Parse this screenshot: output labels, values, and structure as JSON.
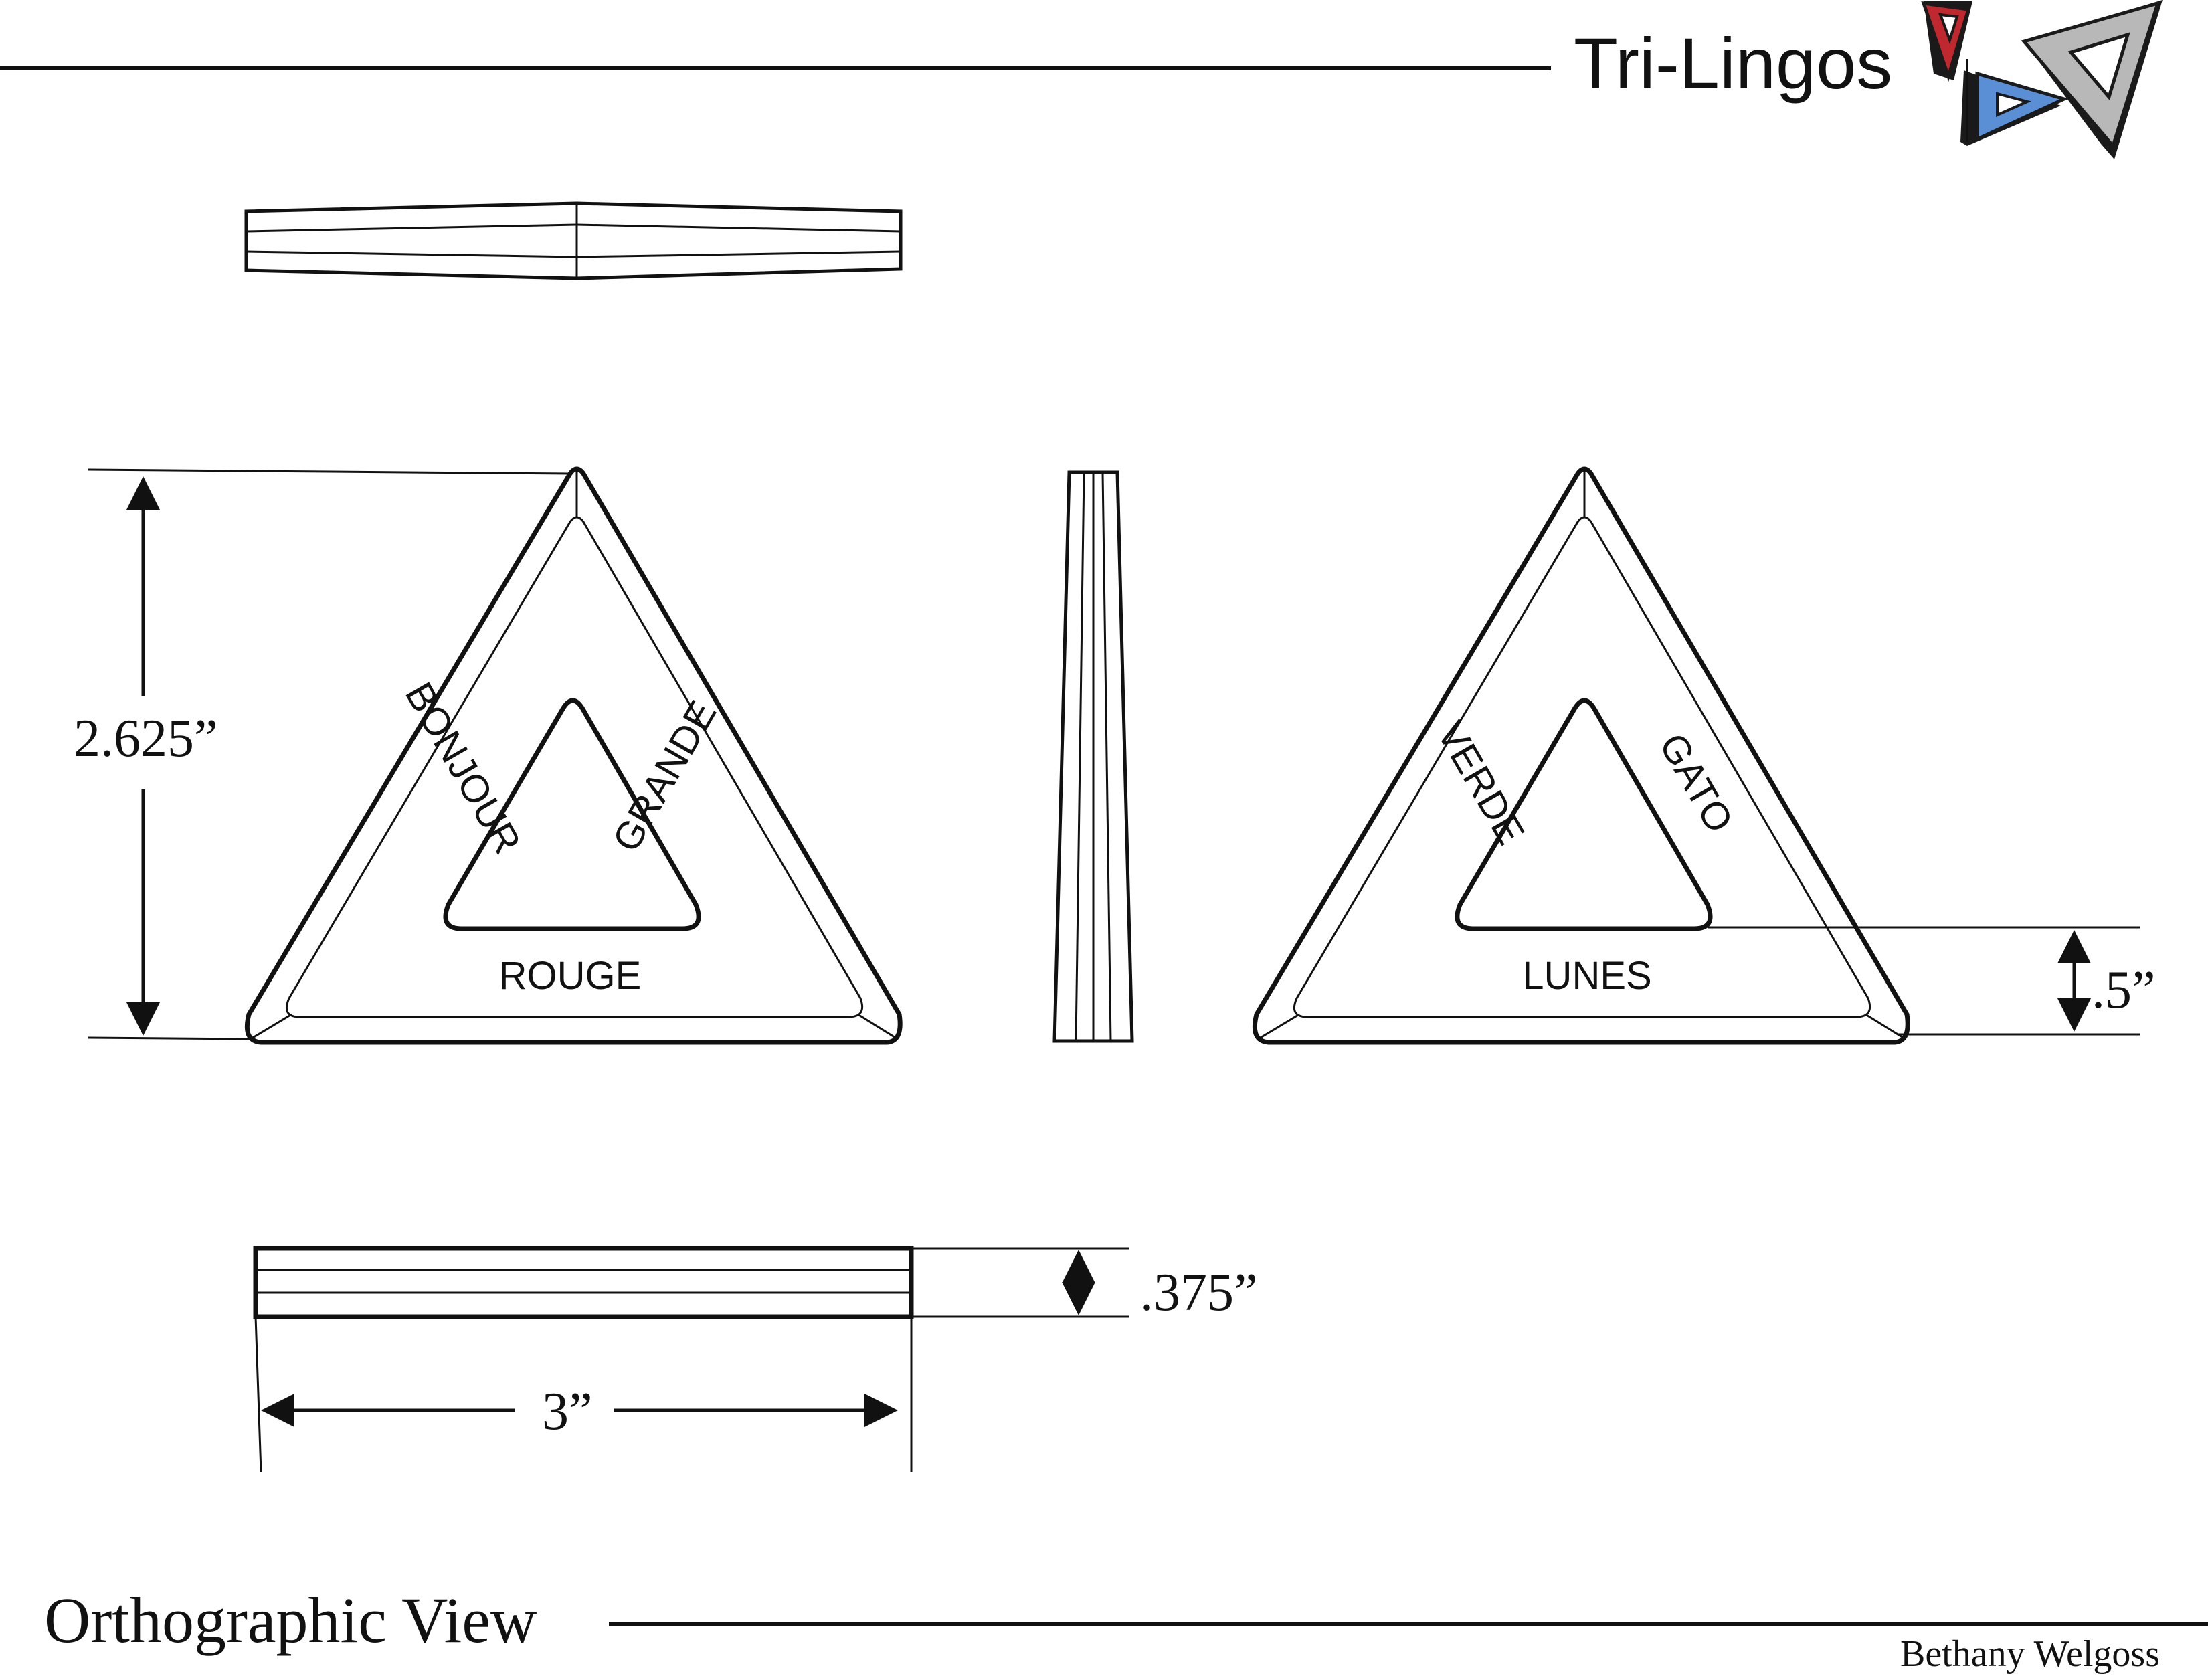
{
  "header": {
    "title": "Tri-Lingos",
    "logo": {
      "name": "tri-lingos-logo",
      "colors": {
        "red": "#c0282f",
        "blue": "#5a8fd6",
        "gray": "#b8b8b8",
        "outline": "#1a1a1a"
      }
    }
  },
  "footer": {
    "view_title": "Orthographic View",
    "author": "Bethany Welgoss"
  },
  "front_view": {
    "words": {
      "left": "BONJOUR",
      "right": "GRANDE",
      "bottom": "ROUGE"
    }
  },
  "back_view": {
    "words": {
      "left": "VERDE",
      "right": "GATO",
      "bottom": "LUNES"
    }
  },
  "dimensions": {
    "height": "2.625”",
    "hole_offset": ".5”",
    "thickness": ".375”",
    "width": "3”"
  },
  "colors": {
    "line": "#111111",
    "background": "#ffffff"
  }
}
